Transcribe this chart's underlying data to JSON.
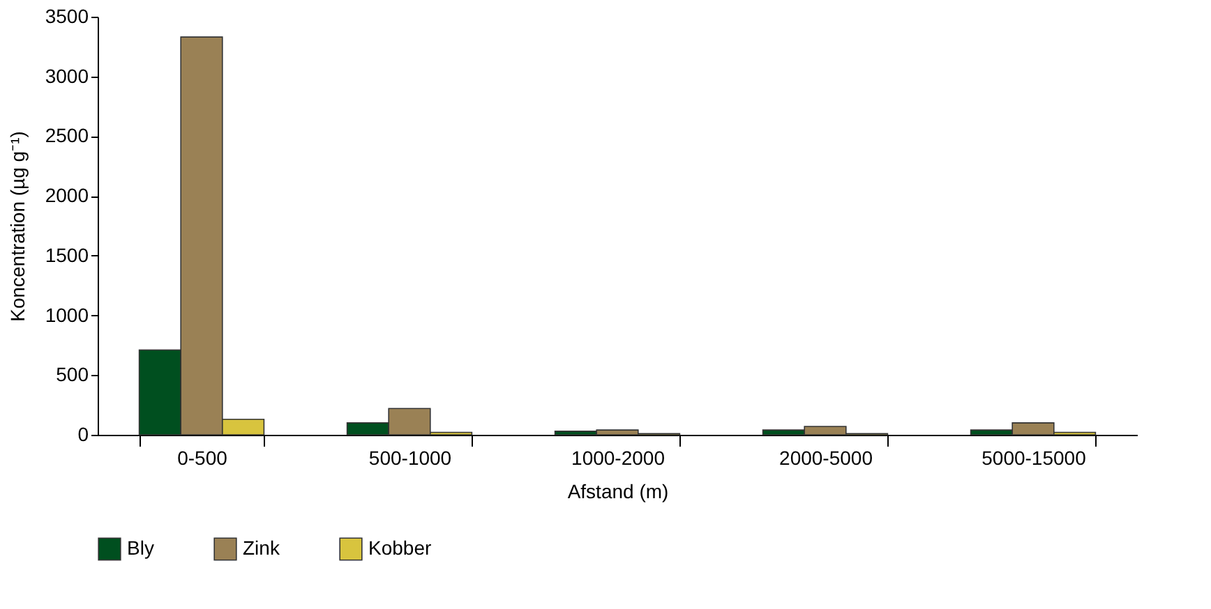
{
  "chart_data": {
    "type": "bar",
    "xlabel": "Afstand (m)",
    "ylabel": "Koncentration (µg g⁻¹)",
    "categories": [
      "0-500",
      "500-1000",
      "1000-2000",
      "2000-5000",
      "5000-15000"
    ],
    "series": [
      {
        "name": "Bly",
        "color": "#004f1f",
        "values": [
          710,
          100,
          30,
          40,
          40
        ]
      },
      {
        "name": "Zink",
        "color": "#9a8155",
        "values": [
          3330,
          220,
          40,
          70,
          100
        ]
      },
      {
        "name": "Kobber",
        "color": "#d8c43e",
        "values": [
          130,
          20,
          10,
          10,
          20
        ]
      }
    ],
    "ylim": [
      0,
      3500
    ],
    "yticks": [
      0,
      500,
      1000,
      1500,
      2000,
      2500,
      3000,
      3500
    ],
    "grid": false,
    "legend": "bottom left"
  }
}
